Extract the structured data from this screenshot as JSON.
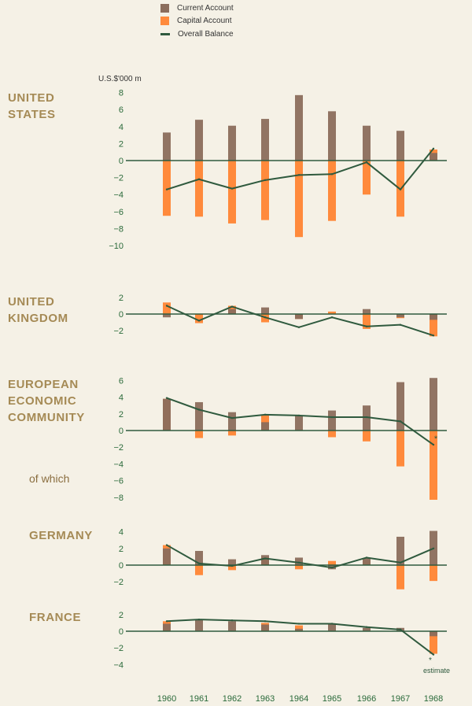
{
  "legend": {
    "current": {
      "label": "Current Account",
      "color": "#8b6d5c"
    },
    "capital": {
      "label": "Capital Account",
      "color": "#ff8a3c"
    },
    "overall": {
      "label": "Overall Balance",
      "color": "#2f5a3e"
    }
  },
  "units_label": "U.S.$'000 m",
  "of_which_label": "of which",
  "chart_data": [
    {
      "type": "bar+line",
      "title": "UNITED\nSTATES",
      "categories": [
        "1960",
        "1961",
        "1962",
        "1963",
        "1964",
        "1965",
        "1966",
        "1967",
        "1968"
      ],
      "ylim": [
        -10,
        8
      ],
      "yticks": [
        8,
        6,
        4,
        2,
        0,
        -2,
        -4,
        -6,
        -8,
        -10
      ],
      "series": [
        {
          "name": "Current Account",
          "type": "bar",
          "values": [
            3.3,
            4.8,
            4.1,
            4.9,
            7.7,
            5.8,
            4.1,
            3.5,
            0.9
          ]
        },
        {
          "name": "Capital Account",
          "type": "bar",
          "values": [
            -6.5,
            -6.6,
            -7.4,
            -7.0,
            -9.0,
            -7.1,
            -4.0,
            -6.6,
            1.3
          ]
        },
        {
          "name": "Overall Balance",
          "type": "line",
          "values": [
            -3.4,
            -2.2,
            -3.3,
            -2.3,
            -1.7,
            -1.6,
            -0.2,
            -3.4,
            1.4
          ]
        }
      ]
    },
    {
      "type": "bar+line",
      "title": "UNITED\nKINGDOM",
      "categories": [
        "1960",
        "1961",
        "1962",
        "1963",
        "1964",
        "1965",
        "1966",
        "1967",
        "1968"
      ],
      "ylim": [
        -2,
        2
      ],
      "yticks": [
        2,
        0,
        -2
      ],
      "series": [
        {
          "name": "Current Account",
          "type": "bar",
          "values": [
            -0.4,
            0.0,
            0.6,
            0.8,
            -0.6,
            0.0,
            0.6,
            -0.4,
            -0.7
          ]
        },
        {
          "name": "Capital Account",
          "type": "bar",
          "values": [
            1.4,
            -1.1,
            1.0,
            -1.0,
            -0.6,
            0.3,
            -1.8,
            -0.5,
            -2.7
          ]
        },
        {
          "name": "Overall Balance",
          "type": "line",
          "values": [
            1.0,
            -0.8,
            0.9,
            -0.4,
            -1.6,
            -0.4,
            -1.5,
            -1.3,
            -2.6
          ]
        }
      ]
    },
    {
      "type": "bar+line",
      "title": "EUROPEAN\nECONOMIC\nCOMMUNITY",
      "categories": [
        "1960",
        "1961",
        "1962",
        "1963",
        "1964",
        "1965",
        "1966",
        "1967",
        "1968"
      ],
      "ylim": [
        -8,
        6
      ],
      "yticks": [
        6,
        4,
        2,
        0,
        -2,
        -4,
        -6,
        -8
      ],
      "series": [
        {
          "name": "Current Account",
          "type": "bar",
          "values": [
            3.8,
            3.4,
            2.2,
            1.0,
            1.8,
            2.4,
            3.0,
            5.8,
            6.3
          ]
        },
        {
          "name": "Capital Account",
          "type": "bar",
          "values": [
            3.8,
            -0.9,
            -0.6,
            1.8,
            0.0,
            -0.8,
            -1.3,
            -4.3,
            -8.3
          ]
        },
        {
          "name": "Overall Balance",
          "type": "line",
          "values": [
            3.9,
            2.5,
            1.5,
            1.9,
            1.8,
            1.6,
            1.6,
            1.1,
            -1.7
          ]
        }
      ]
    },
    {
      "type": "bar+line",
      "title": "GERMANY",
      "categories": [
        "1960",
        "1961",
        "1962",
        "1963",
        "1964",
        "1965",
        "1966",
        "1967",
        "1968"
      ],
      "ylim": [
        -2,
        4
      ],
      "yticks": [
        4,
        2,
        0,
        -2
      ],
      "series": [
        {
          "name": "Current Account",
          "type": "bar",
          "values": [
            2.0,
            1.7,
            0.7,
            1.2,
            0.9,
            -0.5,
            0.8,
            3.4,
            4.1
          ]
        },
        {
          "name": "Capital Account",
          "type": "bar",
          "values": [
            2.4,
            -1.2,
            -0.6,
            0.9,
            -0.5,
            0.5,
            0.6,
            -2.9,
            -1.9
          ]
        },
        {
          "name": "Overall Balance",
          "type": "line",
          "values": [
            2.4,
            0.2,
            -0.1,
            0.8,
            0.3,
            -0.3,
            0.9,
            0.3,
            2.0
          ]
        }
      ]
    },
    {
      "type": "bar+line",
      "title": "FRANCE",
      "categories": [
        "1960",
        "1961",
        "1962",
        "1963",
        "1964",
        "1965",
        "1966",
        "1967",
        "1968"
      ],
      "ylim": [
        -4,
        2
      ],
      "yticks": [
        2,
        0,
        -2,
        -4
      ],
      "annotations": [
        "*",
        "estimate"
      ],
      "series": [
        {
          "name": "Current Account",
          "type": "bar",
          "values": [
            0.9,
            1.4,
            1.2,
            0.8,
            0.3,
            0.9,
            0.4,
            0.4,
            -0.6
          ]
        },
        {
          "name": "Capital Account",
          "type": "bar",
          "values": [
            1.2,
            0.0,
            0.0,
            1.0,
            0.7,
            0.0,
            0.0,
            0.0,
            -2.7
          ]
        },
        {
          "name": "Overall Balance",
          "type": "line",
          "values": [
            1.2,
            1.4,
            1.3,
            1.2,
            0.9,
            0.9,
            0.5,
            0.2,
            -2.8
          ]
        }
      ]
    }
  ]
}
